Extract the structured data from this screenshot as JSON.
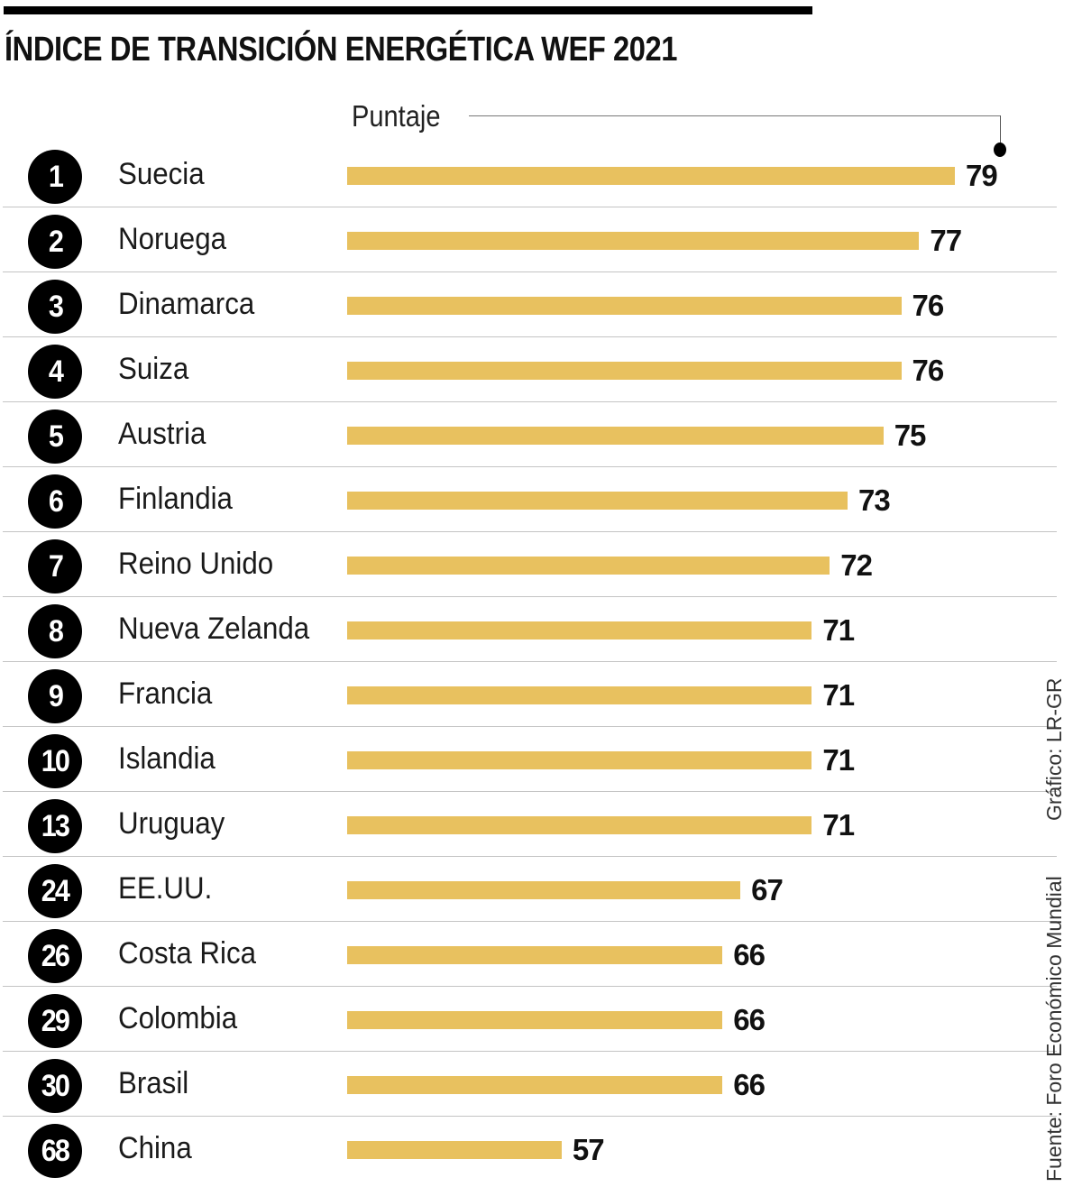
{
  "chart_data": {
    "type": "bar",
    "orientation": "horizontal",
    "title": "ÍNDICE DE TRANSICIÓN ENERGÉTICA WEF 2021",
    "value_label": "Puntaje",
    "xlim": [
      45,
      79
    ],
    "bar_color": "#e8c15f",
    "rows": [
      {
        "rank": "1",
        "country": "Suecia",
        "value": 79
      },
      {
        "rank": "2",
        "country": "Noruega",
        "value": 77
      },
      {
        "rank": "3",
        "country": "Dinamarca",
        "value": 76
      },
      {
        "rank": "4",
        "country": "Suiza",
        "value": 76
      },
      {
        "rank": "5",
        "country": "Austria",
        "value": 75
      },
      {
        "rank": "6",
        "country": "Finlandia",
        "value": 73
      },
      {
        "rank": "7",
        "country": "Reino Unido",
        "value": 72
      },
      {
        "rank": "8",
        "country": "Nueva Zelanda",
        "value": 71
      },
      {
        "rank": "9",
        "country": "Francia",
        "value": 71
      },
      {
        "rank": "10",
        "country": "Islandia",
        "value": 71
      },
      {
        "rank": "13",
        "country": "Uruguay",
        "value": 71
      },
      {
        "rank": "24",
        "country": "EE.UU.",
        "value": 67
      },
      {
        "rank": "26",
        "country": "Costa Rica",
        "value": 66
      },
      {
        "rank": "29",
        "country": "Colombia",
        "value": 66
      },
      {
        "rank": "30",
        "country": "Brasil",
        "value": 66
      },
      {
        "rank": "68",
        "country": "China",
        "value": 57
      }
    ]
  },
  "source": "Fuente: Foro Económico Mundial",
  "credit": "Gráfico: LR-GR"
}
